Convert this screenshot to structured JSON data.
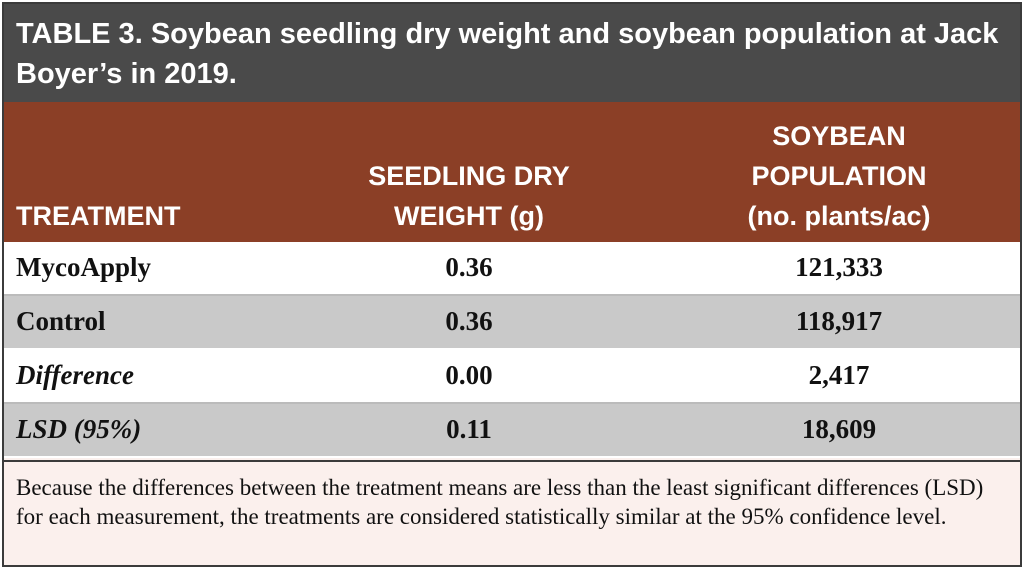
{
  "table": {
    "title_label": "TABLE 3.",
    "title_text": "Soybean seedling dry weight and soybean population at Jack Boyer’s in 2019.",
    "headers": {
      "treatment": "TREATMENT",
      "seedling_line1": "SEEDLING DRY",
      "seedling_line2": "WEIGHT (g)",
      "population_line1": "SOYBEAN",
      "population_line2": "POPULATION",
      "population_line3": "(no. plants/ac)"
    },
    "rows": [
      {
        "treatment": "MycoApply",
        "seedling_dry_weight": "0.36",
        "population": "121,333"
      },
      {
        "treatment": "Control",
        "seedling_dry_weight": "0.36",
        "population": "118,917"
      },
      {
        "treatment": "Difference",
        "seedling_dry_weight": "0.00",
        "population": "2,417"
      },
      {
        "treatment": "LSD (95%)",
        "seedling_dry_weight": "0.11",
        "population": "18,609"
      }
    ],
    "footnote": "Because the differences between the treatment means are less than the least significant differences (LSD) for each measurement, the treatments are considered statistically similar at the 95% confidence level."
  },
  "colors": {
    "title_bg": "#4a4a4a",
    "header_bg": "#8b3f26",
    "row_gray": "#c9c9c9",
    "row_white": "#ffffff",
    "footnote_bg": "#fbf0ed"
  }
}
